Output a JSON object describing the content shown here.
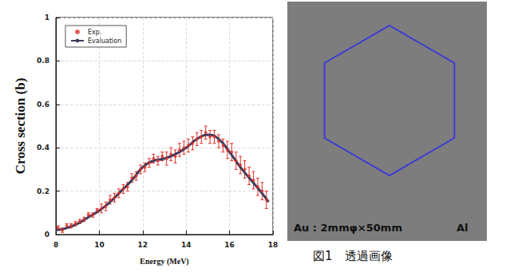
{
  "chart_data": {
    "type": "scatter",
    "x_label": "Energy (MeV)",
    "y_label": "Cross section (b)",
    "xlim": [
      8,
      18
    ],
    "xticks": [
      8,
      10,
      12,
      14,
      16,
      18
    ],
    "ylim": [
      0,
      1
    ],
    "yticks": [
      0,
      0.2,
      0.4,
      0.6,
      0.8,
      1
    ],
    "grid": true,
    "legend": "upper left",
    "series": [
      {
        "name": "Exp.",
        "type": "scatter",
        "color": "#e0302a",
        "marker": "circle",
        "x": [
          8.1,
          8.3,
          8.5,
          8.7,
          8.9,
          9.1,
          9.3,
          9.5,
          9.7,
          9.9,
          10.1,
          10.3,
          10.5,
          10.7,
          10.9,
          11.1,
          11.3,
          11.5,
          11.7,
          11.9,
          12.1,
          12.3,
          12.5,
          12.7,
          12.9,
          13.1,
          13.3,
          13.5,
          13.7,
          13.9,
          14.1,
          14.3,
          14.5,
          14.7,
          14.9,
          15.1,
          15.3,
          15.5,
          15.7,
          15.9,
          16.1,
          16.3,
          16.5,
          16.7,
          16.9,
          17.1,
          17.3,
          17.5,
          17.7
        ],
        "values": [
          0.03,
          0.02,
          0.04,
          0.04,
          0.05,
          0.06,
          0.07,
          0.09,
          0.09,
          0.11,
          0.12,
          0.13,
          0.16,
          0.17,
          0.19,
          0.21,
          0.22,
          0.26,
          0.27,
          0.3,
          0.31,
          0.33,
          0.35,
          0.34,
          0.36,
          0.35,
          0.37,
          0.36,
          0.39,
          0.4,
          0.41,
          0.42,
          0.44,
          0.45,
          0.47,
          0.45,
          0.45,
          0.43,
          0.41,
          0.39,
          0.38,
          0.34,
          0.32,
          0.3,
          0.27,
          0.25,
          0.22,
          0.2,
          0.16
        ],
        "errors": [
          0.01,
          0.01,
          0.01,
          0.01,
          0.01,
          0.01,
          0.01,
          0.01,
          0.01,
          0.01,
          0.02,
          0.02,
          0.02,
          0.02,
          0.02,
          0.02,
          0.02,
          0.02,
          0.02,
          0.02,
          0.02,
          0.02,
          0.02,
          0.02,
          0.02,
          0.03,
          0.03,
          0.03,
          0.03,
          0.03,
          0.03,
          0.03,
          0.03,
          0.03,
          0.03,
          0.03,
          0.03,
          0.03,
          0.03,
          0.04,
          0.04,
          0.04,
          0.04,
          0.04,
          0.04,
          0.04,
          0.04,
          0.04,
          0.04
        ]
      },
      {
        "name": "Evaluation",
        "type": "line",
        "color": "#3c3c5a",
        "line_style": "solid",
        "x": [
          8.0,
          8.5,
          9.0,
          9.5,
          10.0,
          10.5,
          11.0,
          11.5,
          12.0,
          12.5,
          13.0,
          13.5,
          14.0,
          14.5,
          15.0,
          15.5,
          16.0,
          16.5,
          17.0,
          17.5,
          17.8
        ],
        "values": [
          0.02,
          0.03,
          0.05,
          0.08,
          0.11,
          0.15,
          0.2,
          0.25,
          0.31,
          0.34,
          0.35,
          0.37,
          0.4,
          0.44,
          0.46,
          0.44,
          0.38,
          0.31,
          0.25,
          0.19,
          0.15
        ]
      }
    ]
  },
  "figure": {
    "sample_label": "Au : 2mmφ×50mm",
    "material_label": "Al",
    "caption": "図1　透過画像"
  }
}
